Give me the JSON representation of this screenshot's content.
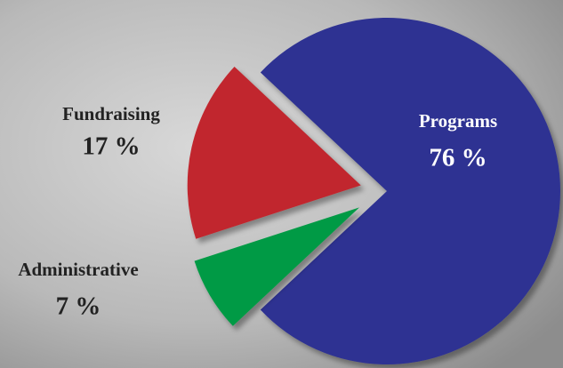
{
  "chart_data": {
    "type": "pie",
    "categories": [
      "Programs",
      "Fundraising",
      "Administrative"
    ],
    "values": [
      76,
      17,
      7
    ],
    "value_labels": [
      "76 %",
      "17 %",
      "7 %"
    ],
    "colors": [
      "#2e3192",
      "#c1272d",
      "#009a44"
    ]
  }
}
